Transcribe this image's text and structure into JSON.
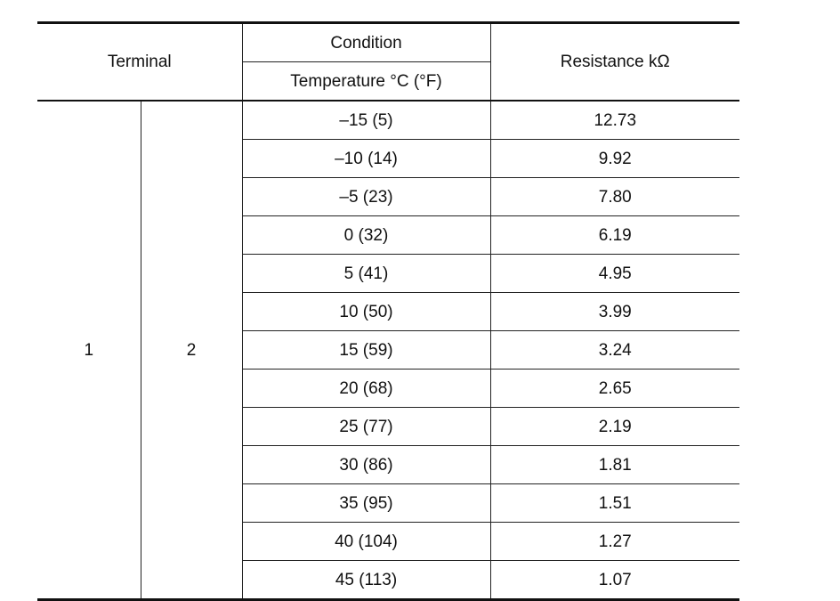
{
  "table": {
    "headers": {
      "terminal": "Terminal",
      "condition": "Condition",
      "temperature": "Temperature °C (°F)",
      "resistance": "Resistance kΩ"
    },
    "terminal_values": [
      "1",
      "2"
    ],
    "rows": [
      {
        "temperature": "–15 (5)",
        "resistance": "12.73"
      },
      {
        "temperature": "–10 (14)",
        "resistance": "9.92"
      },
      {
        "temperature": "–5 (23)",
        "resistance": "7.80"
      },
      {
        "temperature": "0 (32)",
        "resistance": "6.19"
      },
      {
        "temperature": "5 (41)",
        "resistance": "4.95"
      },
      {
        "temperature": "10 (50)",
        "resistance": "3.99"
      },
      {
        "temperature": "15 (59)",
        "resistance": "3.24"
      },
      {
        "temperature": "20 (68)",
        "resistance": "2.65"
      },
      {
        "temperature": "25 (77)",
        "resistance": "2.19"
      },
      {
        "temperature": "30 (86)",
        "resistance": "1.81"
      },
      {
        "temperature": "35 (95)",
        "resistance": "1.51"
      },
      {
        "temperature": "40 (104)",
        "resistance": "1.27"
      },
      {
        "temperature": "45 (113)",
        "resistance": "1.07"
      }
    ]
  }
}
